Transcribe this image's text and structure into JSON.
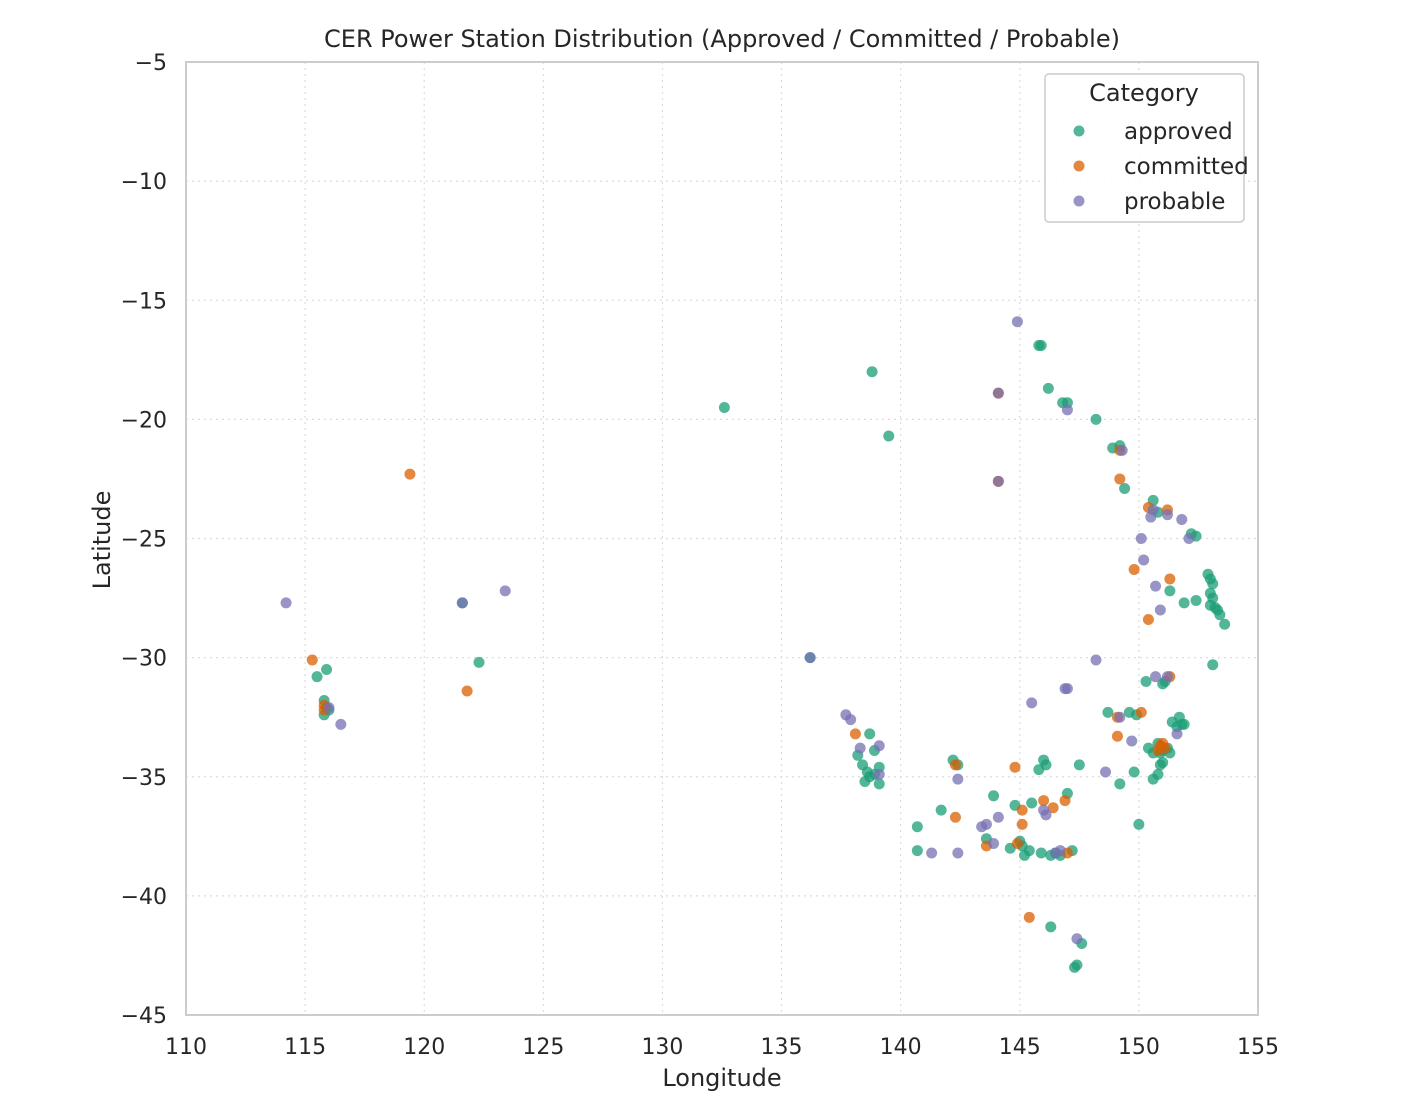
{
  "chart_data": {
    "type": "scatter",
    "title": "CER Power Station Distribution (Approved / Committed / Probable)",
    "xlabel": "Longitude",
    "ylabel": "Latitude",
    "xlim": [
      110,
      155
    ],
    "ylim": [
      -45,
      -5
    ],
    "xticks": [
      110,
      115,
      120,
      125,
      130,
      135,
      140,
      145,
      150,
      155
    ],
    "yticks": [
      -5,
      -10,
      -15,
      -20,
      -25,
      -30,
      -35,
      -40,
      -45
    ],
    "grid": true,
    "legend": {
      "title": "Category",
      "placement": "top-right"
    },
    "series": [
      {
        "name": "approved",
        "color": "#1b9e77",
        "points": [
          [
            115.5,
            -30.8
          ],
          [
            115.9,
            -30.5
          ],
          [
            115.8,
            -31.8
          ],
          [
            115.9,
            -32.1
          ],
          [
            115.8,
            -32.4
          ],
          [
            116.0,
            -32.2
          ],
          [
            121.6,
            -27.7
          ],
          [
            122.3,
            -30.2
          ],
          [
            132.6,
            -19.5
          ],
          [
            136.2,
            -30.0
          ],
          [
            138.8,
            -18.0
          ],
          [
            139.5,
            -20.7
          ],
          [
            138.2,
            -34.1
          ],
          [
            138.4,
            -34.5
          ],
          [
            138.6,
            -34.8
          ],
          [
            138.7,
            -35.0
          ],
          [
            138.9,
            -34.9
          ],
          [
            138.5,
            -35.2
          ],
          [
            139.1,
            -34.6
          ],
          [
            139.1,
            -35.3
          ],
          [
            138.7,
            -33.2
          ],
          [
            138.9,
            -33.9
          ],
          [
            140.7,
            -37.1
          ],
          [
            140.7,
            -38.1
          ],
          [
            141.7,
            -36.4
          ],
          [
            142.2,
            -34.3
          ],
          [
            142.4,
            -34.5
          ],
          [
            143.6,
            -37.6
          ],
          [
            143.9,
            -35.8
          ],
          [
            144.6,
            -38.0
          ],
          [
            144.8,
            -36.2
          ],
          [
            145.0,
            -37.7
          ],
          [
            145.1,
            -37.9
          ],
          [
            145.2,
            -38.3
          ],
          [
            145.4,
            -38.1
          ],
          [
            145.5,
            -36.1
          ],
          [
            145.8,
            -34.7
          ],
          [
            145.9,
            -38.2
          ],
          [
            146.0,
            -34.3
          ],
          [
            146.1,
            -34.5
          ],
          [
            146.3,
            -38.3
          ],
          [
            146.5,
            -38.2
          ],
          [
            146.7,
            -38.3
          ],
          [
            147.0,
            -35.7
          ],
          [
            147.2,
            -38.1
          ],
          [
            147.5,
            -34.5
          ],
          [
            147.3,
            -43.0
          ],
          [
            147.4,
            -42.9
          ],
          [
            146.3,
            -41.3
          ],
          [
            147.6,
            -42.0
          ],
          [
            145.8,
            -16.9
          ],
          [
            145.9,
            -16.9
          ],
          [
            146.2,
            -18.7
          ],
          [
            146.8,
            -19.3
          ],
          [
            147.0,
            -19.3
          ],
          [
            148.2,
            -20.0
          ],
          [
            148.9,
            -21.2
          ],
          [
            149.2,
            -21.1
          ],
          [
            149.4,
            -22.9
          ],
          [
            150.6,
            -23.4
          ],
          [
            150.8,
            -23.9
          ],
          [
            152.2,
            -24.8
          ],
          [
            152.4,
            -24.9
          ],
          [
            151.3,
            -27.2
          ],
          [
            151.9,
            -27.7
          ],
          [
            152.4,
            -27.6
          ],
          [
            152.9,
            -26.5
          ],
          [
            153.0,
            -26.7
          ],
          [
            153.1,
            -26.9
          ],
          [
            153.0,
            -27.3
          ],
          [
            153.1,
            -27.5
          ],
          [
            153.0,
            -27.8
          ],
          [
            153.2,
            -27.9
          ],
          [
            153.3,
            -28.0
          ],
          [
            153.4,
            -28.2
          ],
          [
            153.6,
            -28.6
          ],
          [
            153.1,
            -30.3
          ],
          [
            150.3,
            -31.0
          ],
          [
            151.0,
            -31.1
          ],
          [
            151.1,
            -31.0
          ],
          [
            148.7,
            -32.3
          ],
          [
            149.6,
            -32.3
          ],
          [
            149.9,
            -32.4
          ],
          [
            151.4,
            -32.7
          ],
          [
            151.7,
            -32.5
          ],
          [
            151.8,
            -32.8
          ],
          [
            151.6,
            -32.9
          ],
          [
            151.9,
            -32.8
          ],
          [
            150.4,
            -33.8
          ],
          [
            150.6,
            -34.0
          ],
          [
            150.8,
            -33.6
          ],
          [
            150.9,
            -34.0
          ],
          [
            151.0,
            -33.9
          ],
          [
            151.2,
            -33.8
          ],
          [
            151.3,
            -34.0
          ],
          [
            150.9,
            -34.5
          ],
          [
            151.0,
            -34.4
          ],
          [
            150.8,
            -34.9
          ],
          [
            150.6,
            -35.1
          ],
          [
            149.8,
            -34.8
          ],
          [
            149.2,
            -35.3
          ],
          [
            150.0,
            -37.0
          ]
        ]
      },
      {
        "name": "committed",
        "color": "#d95f02",
        "points": [
          [
            115.3,
            -30.1
          ],
          [
            115.8,
            -32.0
          ],
          [
            115.8,
            -32.2
          ],
          [
            119.4,
            -22.3
          ],
          [
            121.8,
            -31.4
          ],
          [
            138.1,
            -33.2
          ],
          [
            142.3,
            -34.5
          ],
          [
            142.3,
            -36.7
          ],
          [
            143.6,
            -37.9
          ],
          [
            144.9,
            -37.8
          ],
          [
            145.1,
            -36.4
          ],
          [
            145.1,
            -37.0
          ],
          [
            144.8,
            -34.6
          ],
          [
            146.0,
            -36.0
          ],
          [
            146.4,
            -36.3
          ],
          [
            146.9,
            -36.0
          ],
          [
            147.0,
            -38.2
          ],
          [
            145.4,
            -40.9
          ],
          [
            144.1,
            -18.9
          ],
          [
            144.1,
            -22.6
          ],
          [
            149.2,
            -21.3
          ],
          [
            149.2,
            -22.5
          ],
          [
            150.4,
            -23.7
          ],
          [
            151.2,
            -23.8
          ],
          [
            149.8,
            -26.3
          ],
          [
            151.3,
            -26.7
          ],
          [
            150.4,
            -28.4
          ],
          [
            151.3,
            -30.8
          ],
          [
            149.1,
            -32.5
          ],
          [
            150.1,
            -32.3
          ],
          [
            149.1,
            -33.3
          ],
          [
            150.8,
            -33.9
          ],
          [
            150.9,
            -33.7
          ],
          [
            151.0,
            -33.6
          ],
          [
            151.1,
            -33.8
          ]
        ]
      },
      {
        "name": "probable",
        "color": "#7570b3",
        "points": [
          [
            114.2,
            -27.7
          ],
          [
            116.5,
            -32.8
          ],
          [
            116.0,
            -32.1
          ],
          [
            121.6,
            -27.7
          ],
          [
            123.4,
            -27.2
          ],
          [
            136.2,
            -30.0
          ],
          [
            137.7,
            -32.4
          ],
          [
            137.9,
            -32.6
          ],
          [
            138.3,
            -33.8
          ],
          [
            139.1,
            -33.7
          ],
          [
            139.1,
            -34.9
          ],
          [
            142.4,
            -35.1
          ],
          [
            141.3,
            -38.2
          ],
          [
            142.4,
            -38.2
          ],
          [
            143.4,
            -37.1
          ],
          [
            143.6,
            -37.0
          ],
          [
            144.1,
            -36.7
          ],
          [
            143.9,
            -37.8
          ],
          [
            146.0,
            -36.4
          ],
          [
            146.1,
            -36.6
          ],
          [
            146.5,
            -38.2
          ],
          [
            146.7,
            -38.1
          ],
          [
            145.5,
            -31.9
          ],
          [
            146.9,
            -31.3
          ],
          [
            147.0,
            -31.3
          ],
          [
            148.2,
            -30.1
          ],
          [
            148.6,
            -34.8
          ],
          [
            149.2,
            -32.5
          ],
          [
            149.7,
            -33.5
          ],
          [
            151.6,
            -33.2
          ],
          [
            150.7,
            -30.8
          ],
          [
            151.2,
            -30.8
          ],
          [
            150.9,
            -28.0
          ],
          [
            150.7,
            -27.0
          ],
          [
            150.2,
            -25.9
          ],
          [
            150.1,
            -25.0
          ],
          [
            150.5,
            -24.1
          ],
          [
            150.6,
            -23.8
          ],
          [
            151.2,
            -24.0
          ],
          [
            151.8,
            -24.2
          ],
          [
            152.1,
            -25.0
          ],
          [
            144.9,
            -15.9
          ],
          [
            144.1,
            -18.9
          ],
          [
            144.1,
            -22.6
          ],
          [
            147.0,
            -19.6
          ],
          [
            147.4,
            -41.8
          ],
          [
            149.3,
            -21.3
          ]
        ]
      }
    ]
  }
}
